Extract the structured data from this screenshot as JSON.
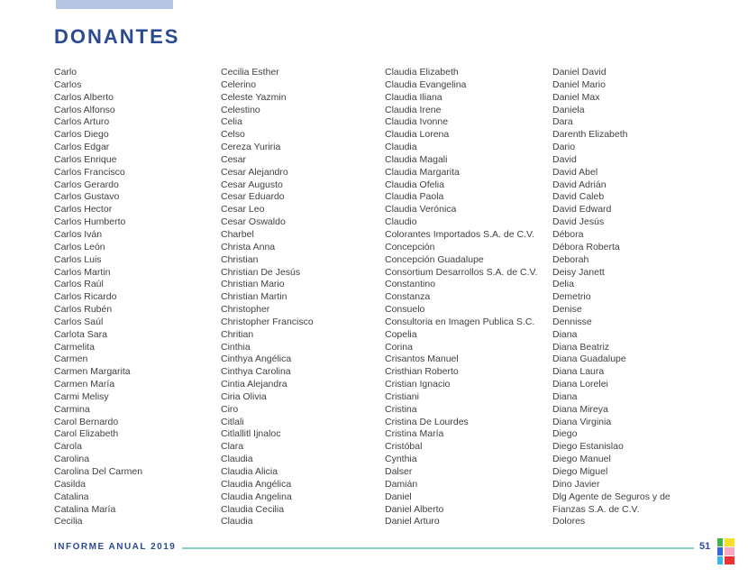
{
  "page": {
    "title": "DONANTES"
  },
  "colors": {
    "header_bar": "#b5c4e3",
    "title_text": "#2b4a92",
    "name_text": "#414141",
    "footer_text": "#2b4a92",
    "footer_line": "#8ed0c8"
  },
  "columns": [
    {
      "names": [
        "Carlo",
        "Carlos",
        "Carlos Alberto",
        "Carlos Alfonso",
        "Carlos Arturo",
        "Carlos Diego",
        "Carlos Edgar",
        "Carlos Enrique",
        "Carlos Francisco",
        "Carlos Gerardo",
        "Carlos Gustavo",
        "Carlos Hector",
        "Carlos Humberto",
        "Carlos Iván",
        "Carlos León",
        "Carlos Luis",
        "Carlos Martin",
        "Carlos Raúl",
        "Carlos Ricardo",
        "Carlos Rubén",
        "Carlos Saúl",
        "Carlota Sara",
        "Carmelita",
        "Carmen",
        "Carmen Margarita",
        "Carmen María",
        "Carmi Melisy",
        "Carmina",
        "Carol Bernardo",
        "Carol Elizabeth",
        "Carola",
        "Carolina",
        "Carolina Del Carmen",
        "Casilda",
        "Catalina",
        "Catalina María",
        "Cecilia"
      ]
    },
    {
      "names": [
        "Cecilia Esther",
        "Celerino",
        "Celeste Yazmin",
        "Celestino",
        "Celia",
        "Celso",
        "Cereza Yuriria",
        "Cesar",
        "Cesar Alejandro",
        "Cesar Augusto",
        "Cesar Eduardo",
        "Cesar Leo",
        "Cesar Oswaldo",
        "Charbel",
        "Christa Anna",
        "Christian",
        "Christian De Jesús",
        "Christian Mario",
        "Christian Martin",
        "Christopher",
        "Christopher Francisco",
        "Chritian",
        "Cinthia",
        "Cinthya Angélica",
        "Cinthya Carolina",
        "Cintia Alejandra",
        "Ciria Olivia",
        "Ciro",
        "Citlali",
        "Citlallitl Ijnaloc",
        "Clara",
        "Claudia",
        "Claudia Alicia",
        "Claudia Angélica",
        "Claudia Angelina",
        "Claudia Cecilia",
        "Claudia"
      ]
    },
    {
      "names": [
        "Claudia Elizabeth",
        "Claudia Evangelina",
        "Claudia Iliana",
        "Claudia Irene",
        "Claudia Ivonne",
        "Claudia Lorena",
        "Claudia",
        "Claudia Magali",
        "Claudia Margarita",
        "Claudia Ofelia",
        "Claudia Paola",
        "Claudia Verónica",
        "Claudio",
        "Colorantes Importados S.A. de C.V.",
        "Concepción",
        "Concepción Guadalupe",
        "Consortium Desarrollos S.A. de C.V.",
        "Constantino",
        "Constanza",
        "Consuelo",
        "Consultoria en Imagen Publica S.C.",
        "Copelia",
        "Corina",
        "Crisantos Manuel",
        "Cristhian Roberto",
        "Cristian Ignacio",
        "Cristiani",
        "Cristina",
        "Cristina De Lourdes",
        "Cristina María",
        "Cristóbal",
        "Cynthia",
        "Dalser",
        "Damián",
        "Daniel",
        "Daniel Alberto",
        "Daniel Arturo"
      ]
    },
    {
      "names": [
        "Daniel David",
        "Daniel Mario",
        "Daniel Max",
        "Daniela",
        "Dara",
        "Darenth Elizabeth",
        "Dario",
        "David",
        "David Abel",
        "David Adrián",
        "David Caleb",
        "David Edward",
        "David Jesús",
        "Débora",
        "Débora Roberta",
        "Deborah",
        "Deisy Janett",
        "Delia",
        "Demetrio",
        "Denise",
        "Dennisse",
        "Diana",
        "Diana Beatriz",
        "Diana Guadalupe",
        "Diana Laura",
        "Diana Lorelei",
        "Diana",
        "Diana Mireya",
        "Diana Virginia",
        "Diego",
        "Diego Estanislao",
        "Diego Manuel",
        "Diego Miguel",
        "Dino Javier",
        "Dlg Agente de Seguros y de Fianzas S.A. de C.V.",
        "Dolores"
      ]
    }
  ],
  "footer": {
    "report_label": "INFORME ANUAL 2019",
    "page_number": "51",
    "logo_colors": [
      "#3cb54a",
      "#f5e027",
      "#2e6bd8",
      "#f8a8c2",
      "#38b6e8",
      "#ee3135"
    ]
  }
}
